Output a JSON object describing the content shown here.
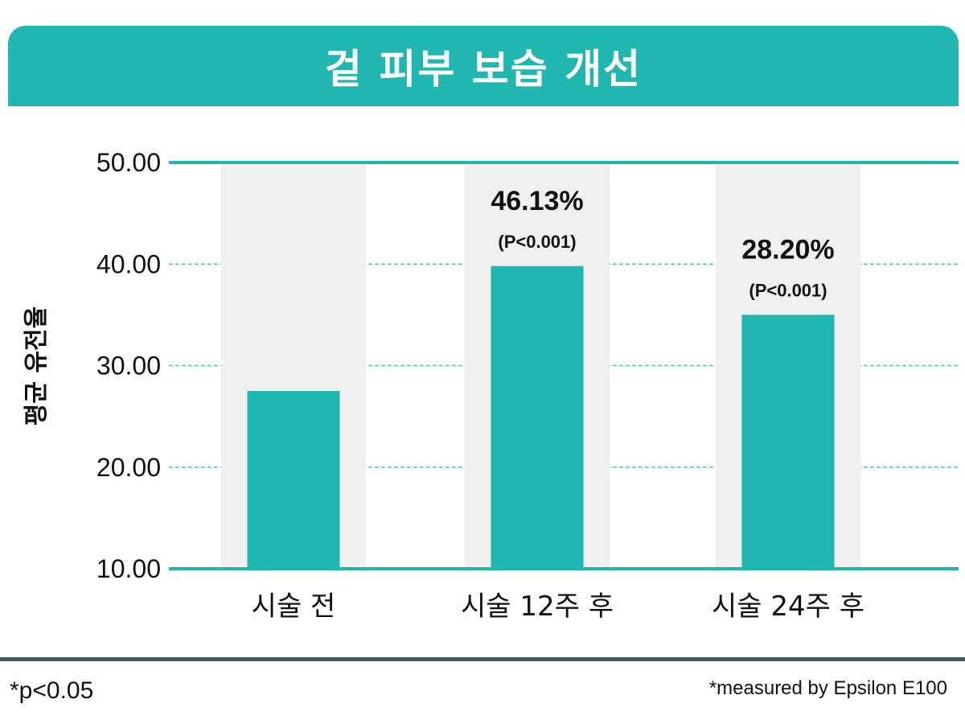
{
  "title": "겉 피부 보습 개선",
  "colors": {
    "accent": "#20b7b0",
    "band": "#f0f0f0",
    "grid": "#5bbfba",
    "footer_line": "#3d5866",
    "text": "#111111"
  },
  "footnotes": {
    "left": "*p<0.05",
    "right": "*measured by Epsilon E100"
  },
  "chart_data": {
    "type": "bar",
    "ylabel": "평균 유전율",
    "xlabel": "",
    "ylim": [
      10,
      50
    ],
    "yticks": [
      "10.00",
      "20.00",
      "30.00",
      "40.00",
      "50.00"
    ],
    "categories": [
      "시술 전",
      "시술 12주 후",
      "시술 24주 후"
    ],
    "values": [
      27.5,
      39.8,
      35.0
    ],
    "annotations": [
      {
        "category": "시술 12주 후",
        "label": "46.13%",
        "sublabel": "(P<0.001)"
      },
      {
        "category": "시술 24주 후",
        "label": "28.20%",
        "sublabel": "(P<0.001)"
      }
    ],
    "grid": true,
    "legend": "none"
  }
}
